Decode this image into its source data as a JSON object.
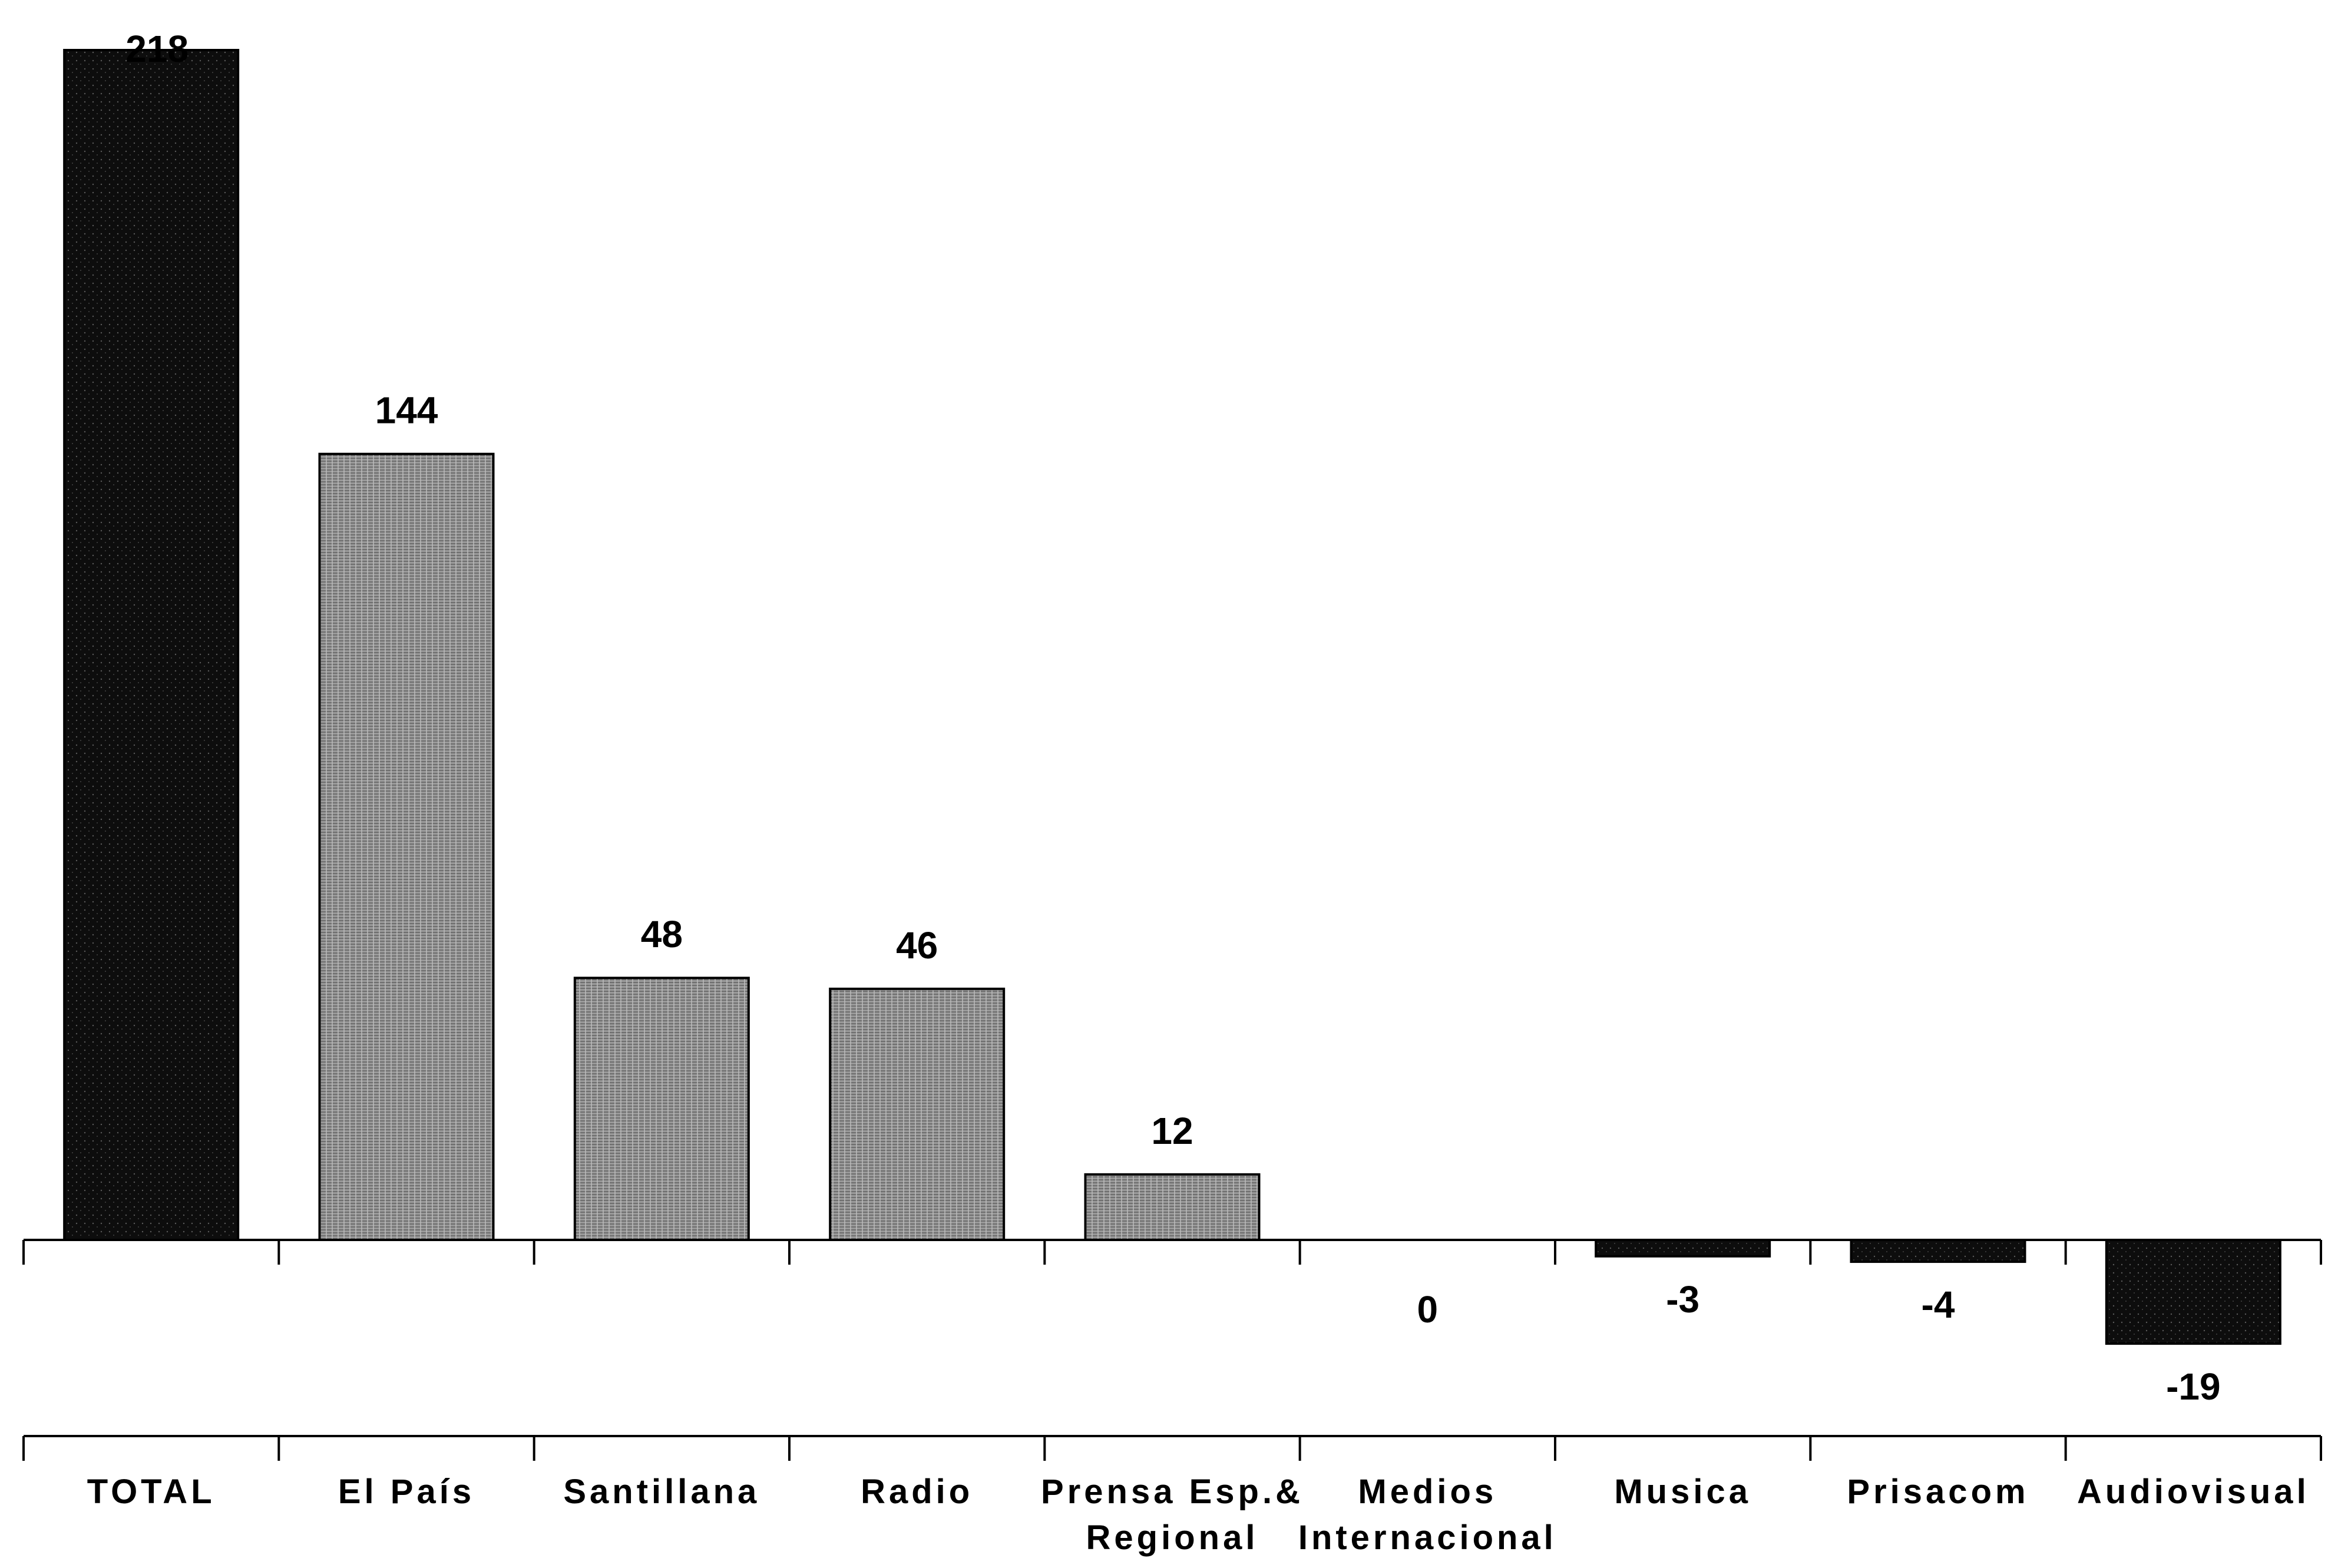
{
  "chart_data": {
    "type": "bar",
    "categories": [
      [
        "TOTAL"
      ],
      [
        "El País"
      ],
      [
        "Santillana"
      ],
      [
        "Radio"
      ],
      [
        "Prensa Esp.&",
        "Regional"
      ],
      [
        "Medios",
        "Internacional"
      ],
      [
        "Musica"
      ],
      [
        "Prisacom"
      ],
      [
        "Audiovisual"
      ]
    ],
    "values": [
      218,
      144,
      48,
      46,
      12,
      0,
      -3,
      -4,
      -19
    ],
    "value_labels": [
      "218",
      "144",
      "48",
      "46",
      "12",
      "0",
      "-3",
      "-4",
      "-19"
    ],
    "ylim": [
      -19,
      218
    ],
    "grid": false,
    "legend": "none",
    "title": "",
    "xlabel": "",
    "ylabel": "",
    "colors": {
      "total": "#111111",
      "positive": "#8f8f8f",
      "negative": "#111111",
      "axis": "#000000"
    }
  }
}
